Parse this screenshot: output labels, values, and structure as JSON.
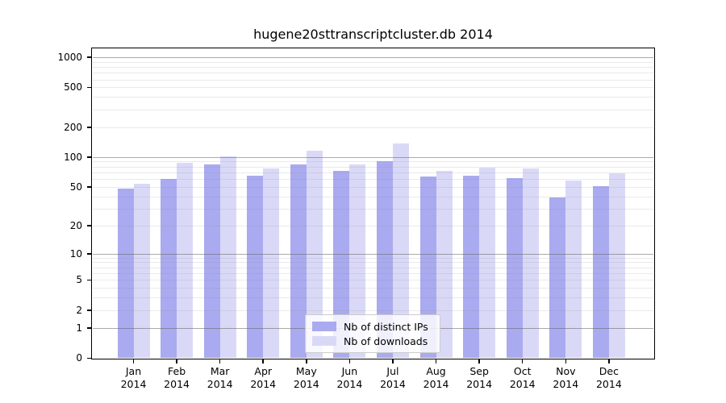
{
  "chart_data": {
    "type": "bar",
    "title": "hugene20sttranscriptcluster.db 2014",
    "categories": [
      "Jan 2014",
      "Feb 2014",
      "Mar 2014",
      "Apr 2014",
      "May 2014",
      "Jun 2014",
      "Jul 2014",
      "Aug 2014",
      "Sep 2014",
      "Oct 2014",
      "Nov 2014",
      "Dec 2014"
    ],
    "series": [
      {
        "name": "Nb of distinct IPs",
        "color": "#aaaaf0",
        "values": [
          48,
          60,
          85,
          65,
          85,
          72,
          91,
          64,
          65,
          61,
          39,
          51
        ]
      },
      {
        "name": "Nb of downloads",
        "color": "#d9d9f7",
        "values": [
          54,
          88,
          101,
          76,
          115,
          85,
          138,
          73,
          78,
          76,
          58,
          69
        ]
      }
    ],
    "yscale": "log1p",
    "yticks": [
      0,
      1,
      2,
      5,
      10,
      20,
      50,
      100,
      200,
      500,
      1000
    ],
    "ylim": [
      0,
      1230
    ],
    "xlabel": "",
    "ylabel": "",
    "grid": true,
    "legend_position": "lower center inside",
    "colors": {
      "axis": "#000000",
      "major_grid": "#a8a8a8",
      "minor_grid": "#e7e7e7",
      "background": "#ffffff",
      "legend_border": "#cccccc"
    }
  }
}
